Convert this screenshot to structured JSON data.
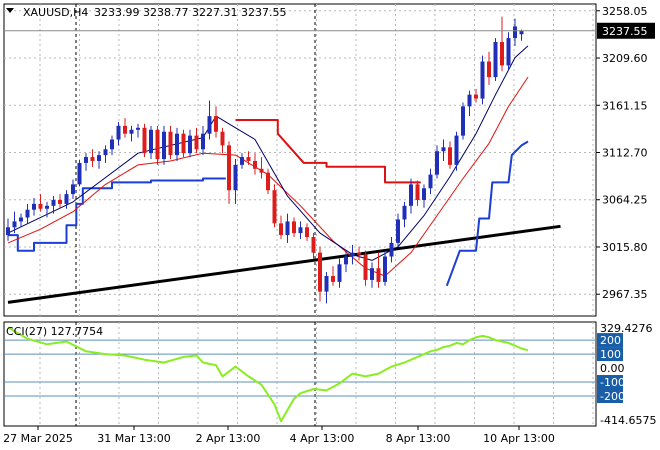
{
  "header": {
    "symbol": "XAUUSD,H4",
    "ohlc": "3233.99 3238.77 3227.31 3237.55"
  },
  "colors": {
    "bull": "#1f2fb8",
    "bear": "#dd1c1c",
    "ma_fast": "#000066",
    "ma_slow": "#e01010",
    "stop_up": "#1a3ed6",
    "stop_down": "#e01010",
    "trendline": "#000000",
    "cci": "#88ee22",
    "level_line": "#5b8fb8",
    "badge_bg": "#1a5ea8",
    "price_badge_bg": "#000000",
    "grid": "#b8b8b8"
  },
  "chart_data": [
    {
      "type": "candlestick",
      "title": "",
      "ylim": [
        2945,
        3265
      ],
      "y_ticks": [
        "3258.05",
        "3209.60",
        "3161.15",
        "3112.70",
        "3064.25",
        "3015.80",
        "2967.35"
      ],
      "x_ticks": [
        "27 Mar 2025",
        "31 Mar 13:00",
        "2 Apr 13:00",
        "4 Apr 13:00",
        "8 Apr 13:00",
        "10 Apr 13:00"
      ],
      "last_price": "3237.55",
      "candles": [
        [
          3028,
          3045,
          3022,
          3036
        ],
        [
          3036,
          3052,
          3030,
          3042
        ],
        [
          3042,
          3050,
          3036,
          3046
        ],
        [
          3046,
          3060,
          3040,
          3054
        ],
        [
          3054,
          3066,
          3048,
          3060
        ],
        [
          3060,
          3070,
          3052,
          3055
        ],
        [
          3055,
          3062,
          3046,
          3058
        ],
        [
          3058,
          3068,
          3050,
          3064
        ],
        [
          3064,
          3070,
          3056,
          3060
        ],
        [
          3060,
          3074,
          3055,
          3070
        ],
        [
          3070,
          3085,
          3065,
          3080
        ],
        [
          3080,
          3105,
          3078,
          3102
        ],
        [
          3102,
          3112,
          3094,
          3108
        ],
        [
          3108,
          3116,
          3098,
          3104
        ],
        [
          3104,
          3114,
          3096,
          3110
        ],
        [
          3110,
          3120,
          3102,
          3116
        ],
        [
          3116,
          3130,
          3110,
          3126
        ],
        [
          3126,
          3144,
          3120,
          3140
        ],
        [
          3140,
          3148,
          3128,
          3132
        ],
        [
          3132,
          3140,
          3124,
          3136
        ],
        [
          3136,
          3142,
          3128,
          3138
        ],
        [
          3138,
          3142,
          3108,
          3112
        ],
        [
          3112,
          3140,
          3106,
          3136
        ],
        [
          3136,
          3140,
          3100,
          3106
        ],
        [
          3106,
          3140,
          3100,
          3134
        ],
        [
          3134,
          3140,
          3106,
          3110
        ],
        [
          3110,
          3138,
          3104,
          3132
        ],
        [
          3132,
          3136,
          3108,
          3112
        ],
        [
          3112,
          3136,
          3108,
          3130
        ],
        [
          3130,
          3138,
          3112,
          3116
        ],
        [
          3116,
          3140,
          3110,
          3132
        ],
        [
          3132,
          3166,
          3126,
          3150
        ],
        [
          3150,
          3160,
          3128,
          3134
        ],
        [
          3134,
          3138,
          3112,
          3120
        ],
        [
          3120,
          3124,
          3060,
          3074
        ],
        [
          3074,
          3106,
          3060,
          3100
        ],
        [
          3100,
          3112,
          3096,
          3108
        ],
        [
          3108,
          3114,
          3100,
          3104
        ],
        [
          3104,
          3112,
          3090,
          3096
        ],
        [
          3096,
          3108,
          3086,
          3092
        ],
        [
          3092,
          3096,
          3070,
          3074
        ],
        [
          3074,
          3080,
          3036,
          3040
        ],
        [
          3040,
          3048,
          3024,
          3028
        ],
        [
          3028,
          3050,
          3020,
          3042
        ],
        [
          3042,
          3046,
          3026,
          3030
        ],
        [
          3030,
          3042,
          3024,
          3036
        ],
        [
          3036,
          3040,
          3022,
          3026
        ],
        [
          3026,
          3030,
          3004,
          3010
        ],
        [
          3010,
          3016,
          2960,
          2970
        ],
        [
          2970,
          2990,
          2958,
          2986
        ],
        [
          2986,
          2996,
          2976,
          2980
        ],
        [
          2980,
          3004,
          2974,
          2998
        ],
        [
          2998,
          3012,
          2990,
          3006
        ],
        [
          3006,
          3018,
          2998,
          3010
        ],
        [
          3010,
          3016,
          3002,
          3008
        ],
        [
          3008,
          3012,
          2976,
          2982
        ],
        [
          2982,
          3000,
          2974,
          2994
        ],
        [
          2994,
          3010,
          2974,
          2980
        ],
        [
          2980,
          3012,
          2976,
          3006
        ],
        [
          3006,
          3026,
          3000,
          3020
        ],
        [
          3020,
          3050,
          3016,
          3044
        ],
        [
          3044,
          3062,
          3036,
          3058
        ],
        [
          3058,
          3086,
          3050,
          3080
        ],
        [
          3080,
          3084,
          3058,
          3064
        ],
        [
          3064,
          3080,
          3056,
          3076
        ],
        [
          3076,
          3096,
          3070,
          3090
        ],
        [
          3090,
          3120,
          3086,
          3114
        ],
        [
          3114,
          3126,
          3104,
          3118
        ],
        [
          3118,
          3124,
          3096,
          3100
        ],
        [
          3100,
          3134,
          3094,
          3130
        ],
        [
          3130,
          3164,
          3126,
          3160
        ],
        [
          3160,
          3176,
          3150,
          3172
        ],
        [
          3172,
          3178,
          3164,
          3168
        ],
        [
          3168,
          3212,
          3162,
          3206
        ],
        [
          3206,
          3216,
          3182,
          3190
        ],
        [
          3190,
          3230,
          3186,
          3226
        ],
        [
          3226,
          3252,
          3196,
          3202
        ],
        [
          3202,
          3236,
          3198,
          3230
        ],
        [
          3230,
          3250,
          3222,
          3242
        ],
        [
          3233.99,
          3238.77,
          3227.31,
          3237.55
        ]
      ],
      "ma_fast": [
        [
          0,
          3030
        ],
        [
          10,
          3062
        ],
        [
          20,
          3112
        ],
        [
          30,
          3128
        ],
        [
          32,
          3150
        ],
        [
          38,
          3126
        ],
        [
          43,
          3068
        ],
        [
          48,
          3030
        ],
        [
          53,
          3008
        ],
        [
          56,
          3002
        ],
        [
          60,
          3016
        ],
        [
          64,
          3048
        ],
        [
          68,
          3088
        ],
        [
          72,
          3132
        ],
        [
          75,
          3172
        ],
        [
          78,
          3210
        ],
        [
          80,
          3222
        ]
      ],
      "ma_slow": [
        [
          0,
          3020
        ],
        [
          5,
          3034
        ],
        [
          10,
          3052
        ],
        [
          15,
          3080
        ],
        [
          20,
          3100
        ],
        [
          25,
          3104
        ],
        [
          30,
          3112
        ],
        [
          35,
          3110
        ],
        [
          40,
          3090
        ],
        [
          45,
          3058
        ],
        [
          50,
          3022
        ],
        [
          55,
          2994
        ],
        [
          58,
          2986
        ],
        [
          62,
          3010
        ],
        [
          66,
          3048
        ],
        [
          70,
          3086
        ],
        [
          74,
          3122
        ],
        [
          77,
          3160
        ],
        [
          80,
          3190
        ]
      ],
      "stop_up": [
        [
          [
            0,
            3028
          ],
          [
            1.5,
            3028
          ],
          [
            1.5,
            3012
          ],
          [
            4,
            3012
          ],
          [
            4,
            3020
          ],
          [
            9,
            3020
          ],
          [
            9,
            3038
          ],
          [
            10.5,
            3038
          ],
          [
            10.5,
            3060
          ],
          [
            11.5,
            3060
          ],
          [
            11.5,
            3076
          ],
          [
            16,
            3076
          ],
          [
            16,
            3082
          ],
          [
            22,
            3082
          ],
          [
            22,
            3084
          ],
          [
            30,
            3084
          ],
          [
            30,
            3086
          ],
          [
            33.5,
            3086
          ]
        ],
        [
          [
            67.5,
            2976
          ],
          [
            69.5,
            3012
          ],
          [
            72,
            3012
          ],
          [
            72.5,
            3045
          ],
          [
            74,
            3045
          ],
          [
            74.5,
            3082
          ],
          [
            77,
            3082
          ],
          [
            77.5,
            3110
          ],
          [
            79,
            3120
          ],
          [
            80,
            3124
          ]
        ]
      ],
      "stop_down": [
        [
          [
            35,
            3146
          ],
          [
            41.5,
            3146
          ],
          [
            41.5,
            3132
          ],
          [
            45.5,
            3102
          ],
          [
            49,
            3102
          ],
          [
            49,
            3098
          ],
          [
            58,
            3098
          ],
          [
            58,
            3082
          ],
          [
            63.5,
            3082
          ]
        ]
      ],
      "trendline": [
        [
          0,
          2959
        ],
        [
          85,
          3037
        ]
      ]
    },
    {
      "type": "line",
      "name": "CCI",
      "label": "CCI(27) 127.7754",
      "ylim": [
        -414.6575,
        329.4276
      ],
      "y_ticks": [
        "329.4276",
        "0.00",
        "-414.6575"
      ],
      "levels": [
        "200",
        "100",
        "-100",
        "-200"
      ],
      "x": [
        0,
        3,
        6,
        9,
        12,
        15,
        18,
        21,
        24,
        27,
        29,
        30,
        31,
        32,
        33,
        35,
        37,
        39,
        41,
        42,
        43,
        44,
        45,
        47,
        49,
        51,
        53,
        55,
        57,
        59,
        61,
        63,
        65,
        66,
        67,
        68,
        69,
        70,
        71,
        72,
        73,
        74,
        75,
        76,
        77,
        78,
        79,
        80
      ],
      "values": [
        290,
        210,
        170,
        190,
        120,
        100,
        90,
        60,
        40,
        80,
        90,
        40,
        30,
        20,
        -60,
        10,
        -60,
        -120,
        -260,
        -380,
        -300,
        -220,
        -180,
        -150,
        -160,
        -110,
        -40,
        -60,
        -40,
        10,
        40,
        80,
        120,
        130,
        150,
        160,
        180,
        170,
        200,
        220,
        230,
        220,
        200,
        190,
        180,
        160,
        140,
        128
      ]
    }
  ]
}
